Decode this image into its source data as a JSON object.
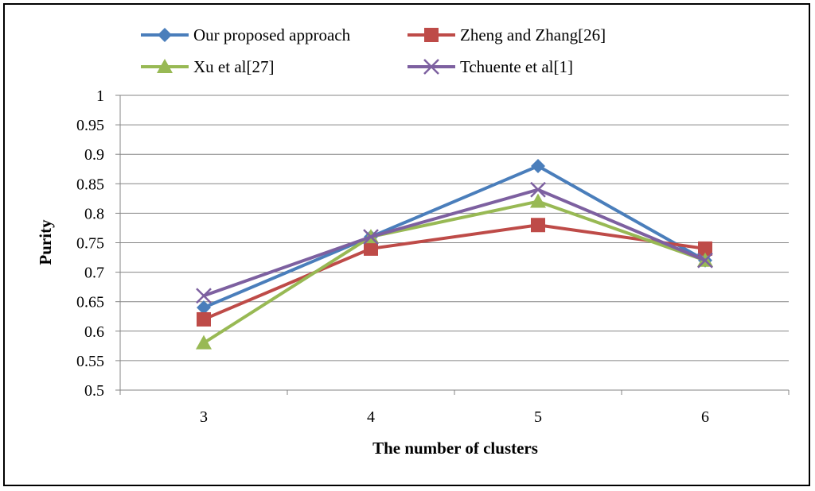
{
  "chart_data": {
    "type": "line",
    "title": "",
    "xlabel": "The number  of clusters",
    "ylabel": "Purity",
    "categories": [
      "3",
      "4",
      "5",
      "6"
    ],
    "ylim": [
      0.5,
      1
    ],
    "yticks": [
      "0.5",
      "0.55",
      "0.6",
      "0.65",
      "0.7",
      "0.75",
      "0.8",
      "0.85",
      "0.9",
      "0.95",
      "1"
    ],
    "grid": true,
    "legend_position": "top",
    "series": [
      {
        "name": "Our proposed approach",
        "values": [
          0.64,
          0.76,
          0.88,
          0.72
        ],
        "color": "#4A7EBB",
        "marker": "diamond"
      },
      {
        "name": "Zheng and Zhang[26]",
        "values": [
          0.62,
          0.74,
          0.78,
          0.74
        ],
        "color": "#BE4B48",
        "marker": "square"
      },
      {
        "name": "Xu et al[27]",
        "values": [
          0.58,
          0.76,
          0.82,
          0.72
        ],
        "color": "#98B954",
        "marker": "triangle"
      },
      {
        "name": "Tchuente et al[1]",
        "values": [
          0.66,
          0.76,
          0.84,
          0.72
        ],
        "color": "#7D60A0",
        "marker": "x"
      }
    ]
  }
}
